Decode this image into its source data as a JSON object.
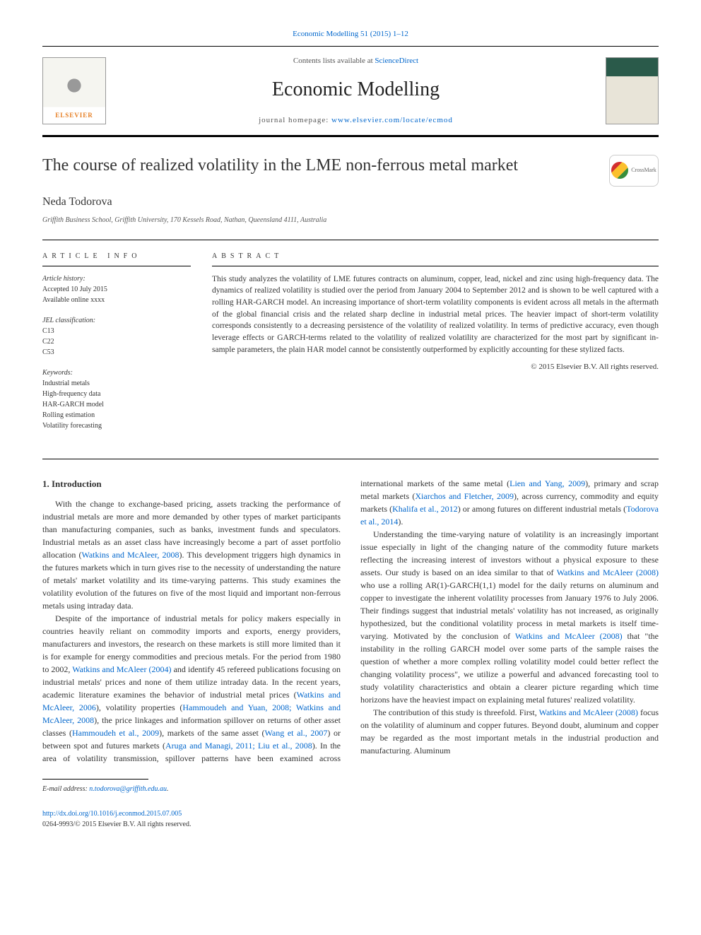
{
  "header": {
    "citation": "Economic Modelling 51 (2015) 1–12",
    "contents_text": "Contents lists available at ",
    "contents_link": "ScienceDirect",
    "journal_title": "Economic Modelling",
    "homepage_label": "journal homepage: ",
    "homepage_url": "www.elsevier.com/locate/ecmod",
    "publisher_name": "ELSEVIER"
  },
  "article": {
    "title": "The course of realized volatility in the LME non-ferrous metal market",
    "author": "Neda Todorova",
    "affiliation": "Griffith Business School, Griffith University, 170 Kessels Road, Nathan, Queensland 4111, Australia",
    "crossmark_label": "CrossMark"
  },
  "info": {
    "heading": "ARTICLE INFO",
    "history_label": "Article history:",
    "accepted": "Accepted 10 July 2015",
    "available": "Available online xxxx",
    "jel_label": "JEL classification:",
    "jel_codes": [
      "C13",
      "C22",
      "C53"
    ],
    "keywords_label": "Keywords:",
    "keywords": [
      "Industrial metals",
      "High-frequency data",
      "HAR-GARCH model",
      "Rolling estimation",
      "Volatility forecasting"
    ]
  },
  "abstract": {
    "heading": "ABSTRACT",
    "text": "This study analyzes the volatility of LME futures contracts on aluminum, copper, lead, nickel and zinc using high-frequency data. The dynamics of realized volatility is studied over the period from January 2004 to September 2012 and is shown to be well captured with a rolling HAR-GARCH model. An increasing importance of short-term volatility components is evident across all metals in the aftermath of the global financial crisis and the related sharp decline in industrial metal prices. The heavier impact of short-term volatility corresponds consistently to a decreasing persistence of the volatility of realized volatility. In terms of predictive accuracy, even though leverage effects or GARCH-terms related to the volatility of realized volatility are characterized for the most part by significant in-sample parameters, the plain HAR model cannot be consistently outperformed by explicitly accounting for these stylized facts.",
    "copyright": "© 2015 Elsevier B.V. All rights reserved."
  },
  "body": {
    "section_heading": "1. Introduction",
    "p1_a": "With the change to exchange-based pricing, assets tracking the performance of industrial metals are more and more demanded by other types of market participants than manufacturing companies, such as banks, investment funds and speculators. Industrial metals as an asset class have increasingly become a part of asset portfolio allocation (",
    "p1_ref1": "Watkins and McAleer, 2008",
    "p1_b": "). This development triggers high dynamics in the futures markets which in turn gives rise to the necessity of understanding the nature of metals' market volatility and its time-varying patterns. This study examines the volatility evolution of the futures on five of the most liquid and important non-ferrous metals using intraday data.",
    "p2_a": "Despite of the importance of industrial metals for policy makers especially in countries heavily reliant on commodity imports and exports, energy providers, manufacturers and investors, the research on these markets is still more limited than it is for example for energy commodities and precious metals. For the period from 1980 to 2002, ",
    "p2_ref1": "Watkins and McAleer (2004)",
    "p2_b": " and identify 45 refereed publications focusing on industrial metals' prices and none of them utilize intraday data. In the recent years, academic literature examines the behavior of industrial metal prices (",
    "p2_ref2": "Watkins and McAleer, 2006",
    "p2_c": "), volatility properties (",
    "p2_ref3": "Hammoudeh and Yuan, 2008; Watkins and McAleer, 2008",
    "p2_d": "), the price linkages and information spillover on returns of other asset classes (",
    "p2_ref4": "Hammoudeh et al., 2009",
    "p2_e": "), markets of the same asset (",
    "p2_ref5": "Wang et al., 2007",
    "p2_f": ") or between spot and futures markets (",
    "p2_ref6": "Aruga and Managi, 2011; Liu et al., 2008",
    "p2_g": "). In the area of volatility transmission, spillover patterns have been examined across international markets of the same metal (",
    "p2_ref7": "Lien and Yang, 2009",
    "p2_h": "), primary and scrap metal markets (",
    "p2_ref8": "Xiarchos and Fletcher, 2009",
    "p2_i": "), across currency, commodity and equity markets (",
    "p2_ref9": "Khalifa et al., 2012",
    "p2_j": ") or among futures on different industrial metals (",
    "p2_ref10": "Todorova et al., 2014",
    "p2_k": ").",
    "p3_a": "Understanding the time-varying nature of volatility is an increasingly important issue especially in light of the changing nature of the commodity future markets reflecting the increasing interest of investors without a physical exposure to these assets. Our study is based on an idea similar to that of ",
    "p3_ref1": "Watkins and McAleer (2008)",
    "p3_b": " who use a rolling AR(1)-GARCH(1,1) model for the daily returns on aluminum and copper to investigate the inherent volatility processes from January 1976 to July 2006. Their findings suggest that industrial metals' volatility has not increased, as originally hypothesized, but the conditional volatility process in metal markets is itself time-varying. Motivated by the conclusion of ",
    "p3_ref2": "Watkins and McAleer (2008)",
    "p3_c": " that \"the instability in the rolling GARCH model over some parts of the sample raises the question of whether a more complex rolling volatility model could better reflect the changing volatility process\", we utilize a powerful and advanced forecasting tool to study volatility characteristics and obtain a clearer picture regarding which time horizons have the heaviest impact on explaining metal futures' realized volatility.",
    "p4_a": "The contribution of this study is threefold. First, ",
    "p4_ref1": "Watkins and McAleer (2008)",
    "p4_b": " focus on the volatility of aluminum and copper futures. Beyond doubt, aluminum and copper may be regarded as the most important metals in the industrial production and manufacturing. Aluminum"
  },
  "footer": {
    "email_label": "E-mail address: ",
    "email": "n.todorova@griffith.edu.au",
    "doi": "http://dx.doi.org/10.1016/j.econmod.2015.07.005",
    "issn_line": "0264-9993/© 2015 Elsevier B.V. All rights reserved."
  },
  "colors": {
    "link": "#0066cc",
    "text": "#333333",
    "border": "#000000",
    "elsevier_orange": "#e67e22",
    "cover_green": "#2a5a4a",
    "cover_beige": "#e8e4d8"
  },
  "typography": {
    "body_fontsize": 13,
    "title_fontsize": 24,
    "journal_title_fontsize": 28,
    "author_fontsize": 16,
    "small_fontsize": 10
  }
}
